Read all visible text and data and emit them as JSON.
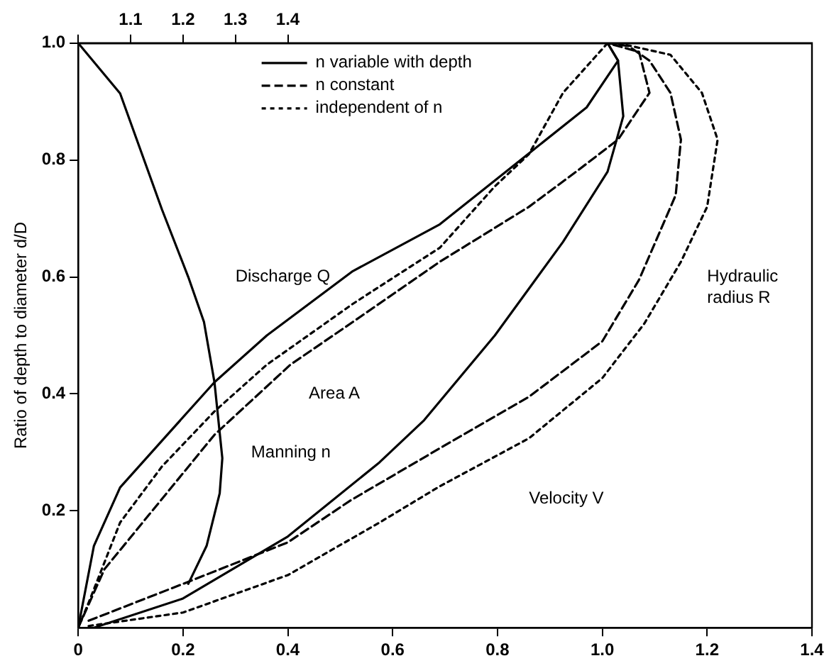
{
  "chart_data": {
    "type": "line",
    "ylabel": "Ratio of depth to diameter d/D",
    "legend": "top",
    "grid": false,
    "marker": "none",
    "xlim": [
      0,
      1.4
    ],
    "xticks": [
      0,
      0.2,
      0.4,
      0.6,
      0.8,
      {
        "value": 1,
        "label": "1.0"
      },
      1.2,
      1.4
    ],
    "x2lim": [
      1.0,
      2.4
    ],
    "x2ticks": [
      {
        "value": 1,
        "label": null
      },
      1.1,
      1.2,
      1.3,
      1.4
    ],
    "ylim": [
      0,
      1
    ],
    "yticks": [
      0.2,
      0.4,
      0.6,
      0.8,
      {
        "value": 1,
        "label": "1.0"
      }
    ],
    "series": [
      {
        "name": "n variable with depth",
        "color": "#000000",
        "line_style": "solid",
        "x": [
          0,
          0.03,
          0.08,
          0.16,
          0.26,
          0.36,
          0.524,
          0.69,
          0.858,
          0.97,
          1.03,
          1.01
        ],
        "values": [
          0,
          0.14,
          0.24,
          0.32,
          0.42,
          0.5,
          0.61,
          0.69,
          0.81,
          0.89,
          0.97,
          1.0
        ]
      },
      {
        "name": "n constant",
        "color": "#000000",
        "line_style": "dashed",
        "x": [
          0,
          0.05,
          0.145,
          0.26,
          0.405,
          0.524,
          0.69,
          0.86,
          0.95,
          1.03,
          1.09,
          1.07,
          1.01
        ],
        "values": [
          0,
          0.1,
          0.204,
          0.33,
          0.45,
          0.523,
          0.626,
          0.72,
          0.78,
          0.835,
          0.915,
          0.985,
          1.0
        ]
      },
      {
        "name": "independent of n",
        "color": "#000000",
        "line_style": "dotted",
        "x": [
          0,
          0.02,
          0.08,
          0.16,
          0.26,
          0.36,
          0.524,
          0.69,
          0.795,
          0.86,
          0.925,
          0.98,
          1.01
        ],
        "values": [
          0,
          0.043,
          0.18,
          0.276,
          0.37,
          0.45,
          0.554,
          0.65,
          0.755,
          0.81,
          0.915,
          0.97,
          1.0
        ]
      },
      {
        "color": "#000000",
        "line_style": "solid",
        "x": [
          0.03,
          0.2,
          0.4,
          0.575,
          0.66,
          0.795,
          0.925,
          1.01,
          1.04,
          1.03,
          1.01
        ],
        "values": [
          0,
          0.05,
          0.156,
          0.283,
          0.355,
          0.5,
          0.66,
          0.78,
          0.875,
          0.97,
          1.0
        ]
      },
      {
        "color": "#000000",
        "line_style": "dashed",
        "x": [
          0.02,
          0.2,
          0.4,
          0.52,
          0.69,
          0.86,
          1.0,
          1.07,
          1.14,
          1.15,
          1.13,
          1.09,
          1.05,
          1.01
        ],
        "values": [
          0.012,
          0.075,
          0.146,
          0.218,
          0.307,
          0.395,
          0.49,
          0.595,
          0.74,
          0.835,
          0.915,
          0.97,
          0.995,
          1.0
        ]
      },
      {
        "color": "#000000",
        "line_style": "dotted",
        "x": [
          0.02,
          0.2,
          0.4,
          0.575,
          0.69,
          0.86,
          1.0,
          1.08,
          1.15,
          1.2,
          1.22,
          1.19,
          1.13,
          1.04,
          1.01
        ],
        "values": [
          0.003,
          0.026,
          0.09,
          0.18,
          0.242,
          0.324,
          0.427,
          0.52,
          0.626,
          0.72,
          0.835,
          0.915,
          0.98,
          0.998,
          1.0
        ]
      },
      {
        "color": "#000000",
        "line_style": "solid",
        "axis": "x2",
        "x": [
          1.0,
          1.08,
          1.16,
          1.21,
          1.24,
          1.26,
          1.275,
          1.27,
          1.245,
          1.21
        ],
        "values": [
          1.0,
          0.914,
          0.715,
          0.6,
          0.523,
          0.42,
          0.29,
          0.23,
          0.14,
          0.075
        ]
      }
    ],
    "annotations": [
      "Discharge Q",
      "Area A",
      "Manning n",
      "Velocity V",
      "Hydraulic radius R"
    ]
  }
}
